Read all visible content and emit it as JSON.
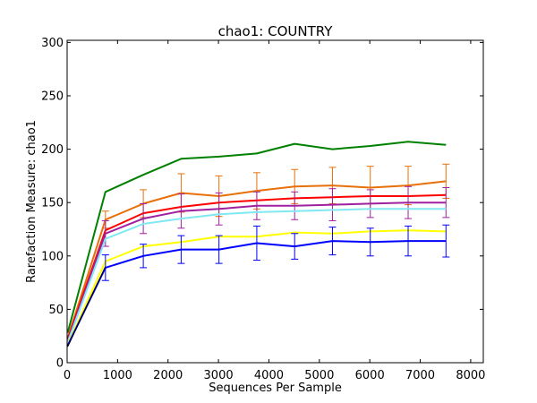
{
  "chart_data": {
    "type": "line",
    "title": "chao1: COUNTRY",
    "xlabel": "Sequences Per Sample",
    "ylabel": "Rarefaction Measure: chao1",
    "xlim": [
      0,
      8250
    ],
    "ylim": [
      0,
      302
    ],
    "xticks": [
      0,
      1000,
      2000,
      3000,
      4000,
      5000,
      6000,
      7000,
      8000
    ],
    "yticks": [
      0,
      50,
      100,
      150,
      200,
      250,
      300
    ],
    "grid": false,
    "legend": "none",
    "x": [
      10,
      760,
      1510,
      2260,
      3010,
      3760,
      4510,
      5260,
      6010,
      6760,
      7510
    ],
    "series": [
      {
        "color": "#008000",
        "values": [
          28,
          160,
          176,
          191,
          193,
          196,
          205,
          200,
          203,
          207,
          204
        ],
        "err": [
          null,
          null,
          null,
          null,
          null,
          null,
          null,
          null,
          null,
          null,
          null
        ]
      },
      {
        "color": "#e8700a",
        "values": [
          23,
          134,
          149,
          159,
          156,
          161,
          165,
          166,
          164,
          166,
          170
        ],
        "err": [
          2,
          8,
          13,
          18,
          19,
          17,
          16,
          17,
          20,
          18,
          16
        ]
      },
      {
        "color": "#ff0000",
        "values": [
          22,
          124,
          140,
          146,
          150,
          152,
          154,
          155,
          156,
          156,
          157
        ],
        "err": [
          null,
          null,
          null,
          null,
          null,
          null,
          null,
          null,
          null,
          null,
          null
        ]
      },
      {
        "color": "#a020a0",
        "values": [
          20,
          121,
          135,
          142,
          144,
          147,
          147,
          148,
          149,
          150,
          150
        ],
        "err": [
          2,
          12,
          14,
          16,
          15,
          13,
          13,
          15,
          13,
          15,
          14
        ]
      },
      {
        "color": "#80e8f0",
        "values": [
          19,
          116,
          130,
          135,
          139,
          141,
          142,
          143,
          144,
          144,
          144
        ],
        "err": [
          null,
          null,
          null,
          null,
          null,
          null,
          null,
          null,
          null,
          null,
          null
        ]
      },
      {
        "color": "#ffff00",
        "values": [
          17,
          95,
          109,
          113,
          118,
          118,
          122,
          121,
          123,
          124,
          123
        ],
        "err": [
          null,
          null,
          null,
          null,
          null,
          null,
          null,
          null,
          null,
          null,
          null
        ]
      },
      {
        "color": "#0000ff",
        "values": [
          16,
          89,
          100,
          106,
          106,
          112,
          109,
          114,
          113,
          114,
          114
        ],
        "err": [
          3,
          12,
          11,
          13,
          13,
          16,
          12,
          13,
          13,
          14,
          15
        ]
      },
      {
        "color": "#000000",
        "values": [
          15,
          90,
          null,
          null,
          null,
          null,
          null,
          null,
          null,
          null,
          null
        ],
        "err": [
          null,
          null,
          null,
          null,
          null,
          null,
          null,
          null,
          null,
          null,
          null
        ]
      }
    ]
  }
}
